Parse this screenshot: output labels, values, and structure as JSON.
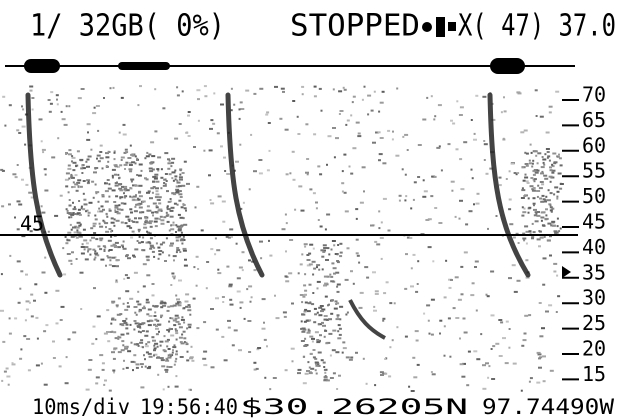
{
  "header": {
    "storage": "1/ 32GB( 0%)",
    "status": "STOPPED",
    "readout": "X( 47) 37.0"
  },
  "marker": {
    "label": "45"
  },
  "scale": {
    "labels": [
      "70",
      "65",
      "60",
      "55",
      "50",
      "45",
      "40",
      "35",
      "30",
      "25",
      "20",
      "15"
    ]
  },
  "footer": {
    "timebase": "10ms/div",
    "time": "19:56:40",
    "position": "$30.26205N",
    "longitude": "97.74490W"
  }
}
